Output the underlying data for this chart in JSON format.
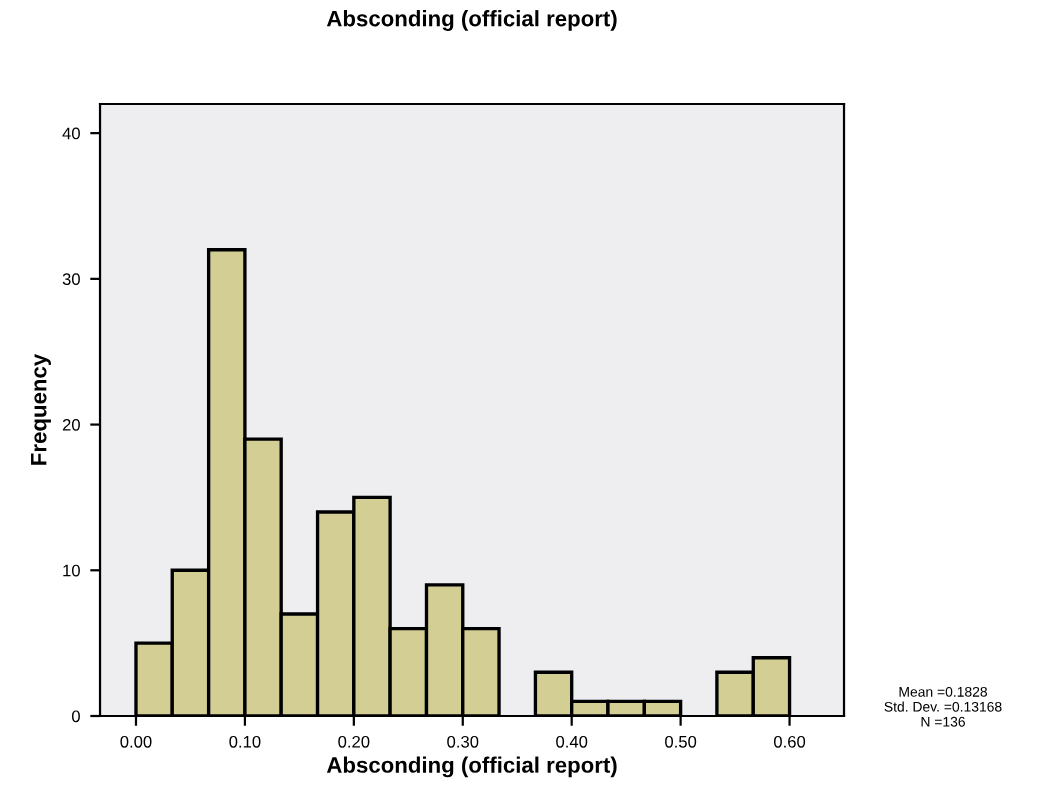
{
  "chart_data": {
    "type": "histogram",
    "title": "Absconding (official report)",
    "xlabel": "Absconding (official report)",
    "ylabel": "Frequency",
    "bins": [
      0,
      0.0333,
      0.0667,
      0.1,
      0.1333,
      0.1667,
      0.2,
      0.2333,
      0.2667,
      0.3,
      0.3333,
      0.3667,
      0.4,
      0.4333,
      0.4667,
      0.5,
      0.5333,
      0.5667,
      0.6
    ],
    "values": [
      5,
      10,
      32,
      19,
      7,
      14,
      15,
      6,
      9,
      6,
      0,
      3,
      1,
      1,
      1,
      0,
      3,
      4
    ],
    "color": "#d3cf94",
    "xlim": [
      -0.033,
      0.65
    ],
    "xticks": [
      {
        "value": 0,
        "label": "0.00"
      },
      {
        "value": 0.1,
        "label": "0.10"
      },
      {
        "value": 0.2,
        "label": "0.20"
      },
      {
        "value": 0.3,
        "label": "0.30"
      },
      {
        "value": 0.4,
        "label": "0.40"
      },
      {
        "value": 0.5,
        "label": "0.50"
      },
      {
        "value": 0.6,
        "label": "0.60"
      }
    ],
    "ylim": [
      0,
      42
    ],
    "yticks": [
      0,
      10,
      20,
      30,
      40
    ],
    "grid": false,
    "annotations": [
      "Mean =0.1828\nStd. Dev. =0.13168\nN =136"
    ]
  }
}
